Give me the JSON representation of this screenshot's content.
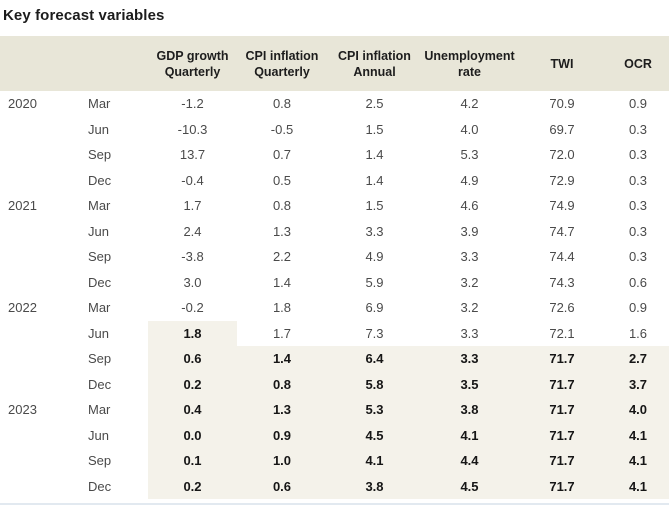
{
  "title": "Key forecast variables",
  "colors": {
    "header_band": "#e8e6d8",
    "forecast_highlight": "#f4f2ea",
    "bottom_divider": "#e2e9f0",
    "title_text": "#1c1c1c",
    "header_text": "#1d1d1d",
    "text_normal": "#4a4a4a",
    "text_bold": "#161616"
  },
  "table": {
    "columns": [
      {
        "id": "gdp-growth-quarterly",
        "line1": "GDP growth",
        "line2": "Quarterly"
      },
      {
        "id": "cpi-inflation-quarterly",
        "line1": "CPI inflation",
        "line2": "Quarterly"
      },
      {
        "id": "cpi-inflation-annual",
        "line1": "CPI inflation",
        "line2": "Annual"
      },
      {
        "id": "unemployment-rate",
        "line1": "Unemployment",
        "line2": "rate"
      },
      {
        "id": "twi",
        "line1": "TWI",
        "line2": ""
      },
      {
        "id": "ocr",
        "line1": "OCR",
        "line2": ""
      }
    ],
    "rows": [
      {
        "year": "2020",
        "month": "Mar",
        "values": [
          "-1.2",
          "0.8",
          "2.5",
          "4.2",
          "70.9",
          "0.9"
        ],
        "forecast": [
          false,
          false,
          false,
          false,
          false,
          false
        ]
      },
      {
        "year": "",
        "month": "Jun",
        "values": [
          "-10.3",
          "-0.5",
          "1.5",
          "4.0",
          "69.7",
          "0.3"
        ],
        "forecast": [
          false,
          false,
          false,
          false,
          false,
          false
        ]
      },
      {
        "year": "",
        "month": "Sep",
        "values": [
          "13.7",
          "0.7",
          "1.4",
          "5.3",
          "72.0",
          "0.3"
        ],
        "forecast": [
          false,
          false,
          false,
          false,
          false,
          false
        ]
      },
      {
        "year": "",
        "month": "Dec",
        "values": [
          "-0.4",
          "0.5",
          "1.4",
          "4.9",
          "72.9",
          "0.3"
        ],
        "forecast": [
          false,
          false,
          false,
          false,
          false,
          false
        ]
      },
      {
        "year": "2021",
        "month": "Mar",
        "values": [
          "1.7",
          "0.8",
          "1.5",
          "4.6",
          "74.9",
          "0.3"
        ],
        "forecast": [
          false,
          false,
          false,
          false,
          false,
          false
        ]
      },
      {
        "year": "",
        "month": "Jun",
        "values": [
          "2.4",
          "1.3",
          "3.3",
          "3.9",
          "74.7",
          "0.3"
        ],
        "forecast": [
          false,
          false,
          false,
          false,
          false,
          false
        ]
      },
      {
        "year": "",
        "month": "Sep",
        "values": [
          "-3.8",
          "2.2",
          "4.9",
          "3.3",
          "74.4",
          "0.3"
        ],
        "forecast": [
          false,
          false,
          false,
          false,
          false,
          false
        ]
      },
      {
        "year": "",
        "month": "Dec",
        "values": [
          "3.0",
          "1.4",
          "5.9",
          "3.2",
          "74.3",
          "0.6"
        ],
        "forecast": [
          false,
          false,
          false,
          false,
          false,
          false
        ]
      },
      {
        "year": "2022",
        "month": "Mar",
        "values": [
          "-0.2",
          "1.8",
          "6.9",
          "3.2",
          "72.6",
          "0.9"
        ],
        "forecast": [
          false,
          false,
          false,
          false,
          false,
          false
        ]
      },
      {
        "year": "",
        "month": "Jun",
        "values": [
          "1.8",
          "1.7",
          "7.3",
          "3.3",
          "72.1",
          "1.6"
        ],
        "forecast": [
          true,
          false,
          false,
          false,
          false,
          false
        ]
      },
      {
        "year": "",
        "month": "Sep",
        "values": [
          "0.6",
          "1.4",
          "6.4",
          "3.3",
          "71.7",
          "2.7"
        ],
        "forecast": [
          true,
          true,
          true,
          true,
          true,
          true
        ]
      },
      {
        "year": "",
        "month": "Dec",
        "values": [
          "0.2",
          "0.8",
          "5.8",
          "3.5",
          "71.7",
          "3.7"
        ],
        "forecast": [
          true,
          true,
          true,
          true,
          true,
          true
        ]
      },
      {
        "year": "2023",
        "month": "Mar",
        "values": [
          "0.4",
          "1.3",
          "5.3",
          "3.8",
          "71.7",
          "4.0"
        ],
        "forecast": [
          true,
          true,
          true,
          true,
          true,
          true
        ]
      },
      {
        "year": "",
        "month": "Jun",
        "values": [
          "0.0",
          "0.9",
          "4.5",
          "4.1",
          "71.7",
          "4.1"
        ],
        "forecast": [
          true,
          true,
          true,
          true,
          true,
          true
        ]
      },
      {
        "year": "",
        "month": "Sep",
        "values": [
          "0.1",
          "1.0",
          "4.1",
          "4.4",
          "71.7",
          "4.1"
        ],
        "forecast": [
          true,
          true,
          true,
          true,
          true,
          true
        ]
      },
      {
        "year": "",
        "month": "Dec",
        "values": [
          "0.2",
          "0.6",
          "3.8",
          "4.5",
          "71.7",
          "4.1"
        ],
        "forecast": [
          true,
          true,
          true,
          true,
          true,
          true
        ]
      }
    ]
  }
}
